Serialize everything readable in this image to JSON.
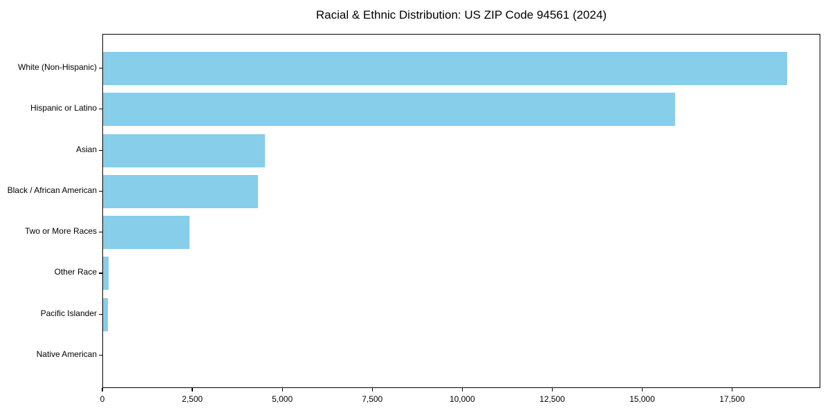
{
  "chart_data": {
    "type": "bar",
    "orientation": "horizontal",
    "title": "Racial & Ethnic Distribution: US ZIP Code 94561 (2024)",
    "categories": [
      "White (Non-Hispanic)",
      "Hispanic or Latino",
      "Asian",
      "Black / African American",
      "Two or More Races",
      "Other Race",
      "Pacific Islander",
      "Native American"
    ],
    "values": [
      19000,
      15900,
      4500,
      4300,
      2400,
      150,
      130,
      0
    ],
    "xlabel": "",
    "ylabel": "",
    "xlim": [
      0,
      19950
    ],
    "x_ticks": [
      0,
      2500,
      5000,
      7500,
      10000,
      12500,
      15000,
      17500
    ],
    "x_tick_labels": [
      "0",
      "2,500",
      "5,000",
      "7,500",
      "10,000",
      "12,500",
      "15,000",
      "17,500"
    ],
    "bar_color": "#87CEEB",
    "text_color": "#000000",
    "background_color": "#FFFFFF",
    "grid": false,
    "legend": false
  }
}
